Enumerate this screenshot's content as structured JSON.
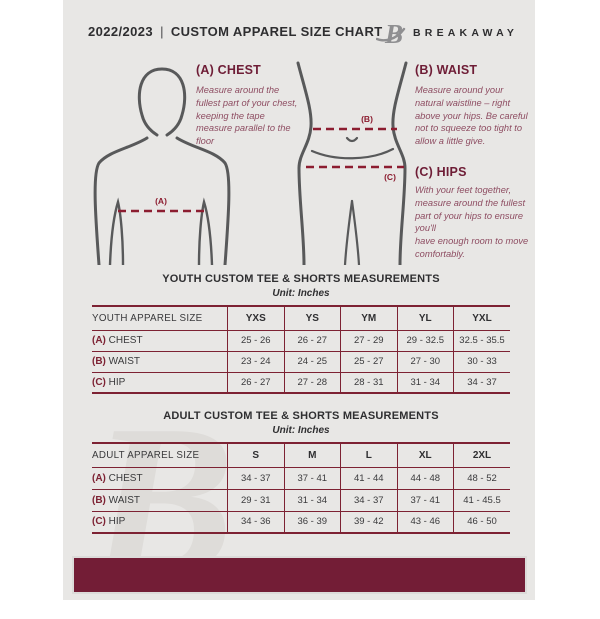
{
  "header": {
    "year": "2022/2023",
    "separator": "|",
    "title": "CUSTOM APPAREL SIZE CHART",
    "brand": "BREAKAWAY",
    "logo_letter": "B"
  },
  "guide": {
    "chest": {
      "heading": "(A) CHEST",
      "body": "Measure around the fullest part of your chest, keeping the tape measure parallel to the floor",
      "marker": "(A)"
    },
    "waist": {
      "heading": "(B) WAIST",
      "body": "Measure around your natural waistline – right above your hips. Be careful not to squeeze too tight to allow a little give.",
      "marker": "(B)"
    },
    "hips": {
      "heading": "(C) HIPS",
      "body": "With your feet together, measure around the fullest part of your hips to ensure you'll\nhave enough room to move comfortably.",
      "marker": "(C)"
    }
  },
  "youth_table": {
    "title": "YOUTH CUSTOM TEE & SHORTS MEASUREMENTS",
    "unit": "Unit: Inches",
    "header": [
      "YOUTH APPAREL SIZE",
      "YXS",
      "YS",
      "YM",
      "YL",
      "YXL"
    ],
    "rows": [
      {
        "key": "(A)",
        "label": "CHEST",
        "values": [
          "25 - 26",
          "26 - 27",
          "27 - 29",
          "29 - 32.5",
          "32.5 - 35.5"
        ]
      },
      {
        "key": "(B)",
        "label": "WAIST",
        "values": [
          "23 - 24",
          "24 - 25",
          "25 - 27",
          "27 - 30",
          "30 - 33"
        ]
      },
      {
        "key": "(C)",
        "label": "HIP",
        "values": [
          "26 - 27",
          "27 - 28",
          "28 - 31",
          "31 - 34",
          "34 - 37"
        ]
      }
    ]
  },
  "adult_table": {
    "title": "ADULT CUSTOM TEE & SHORTS MEASUREMENTS",
    "unit": "Unit: Inches",
    "header": [
      "ADULT APPAREL SIZE",
      "S",
      "M",
      "L",
      "XL",
      "2XL"
    ],
    "rows": [
      {
        "key": "(A)",
        "label": "CHEST",
        "values": [
          "34 - 37",
          "37 - 41",
          "41 - 44",
          "44 - 48",
          "48 - 52"
        ]
      },
      {
        "key": "(B)",
        "label": "WAIST",
        "values": [
          "29 - 31",
          "31 - 34",
          "34 - 37",
          "37 - 41",
          "41 - 45.5"
        ]
      },
      {
        "key": "(C)",
        "label": "HIP",
        "values": [
          "34 - 36",
          "36 - 39",
          "39 - 42",
          "43 - 46",
          "46 - 50"
        ]
      }
    ]
  },
  "colors": {
    "page_background": "#e8e7e5",
    "maroon_accent": "#7d2233",
    "dash_line": "#8c1d30",
    "heading_maroon": "#6e1d36",
    "paragraph_maroon": "#8e4d62",
    "body_outline_gray": "#58595a",
    "dark_text": "#2f2f31",
    "footer_bar": "#731d36"
  }
}
